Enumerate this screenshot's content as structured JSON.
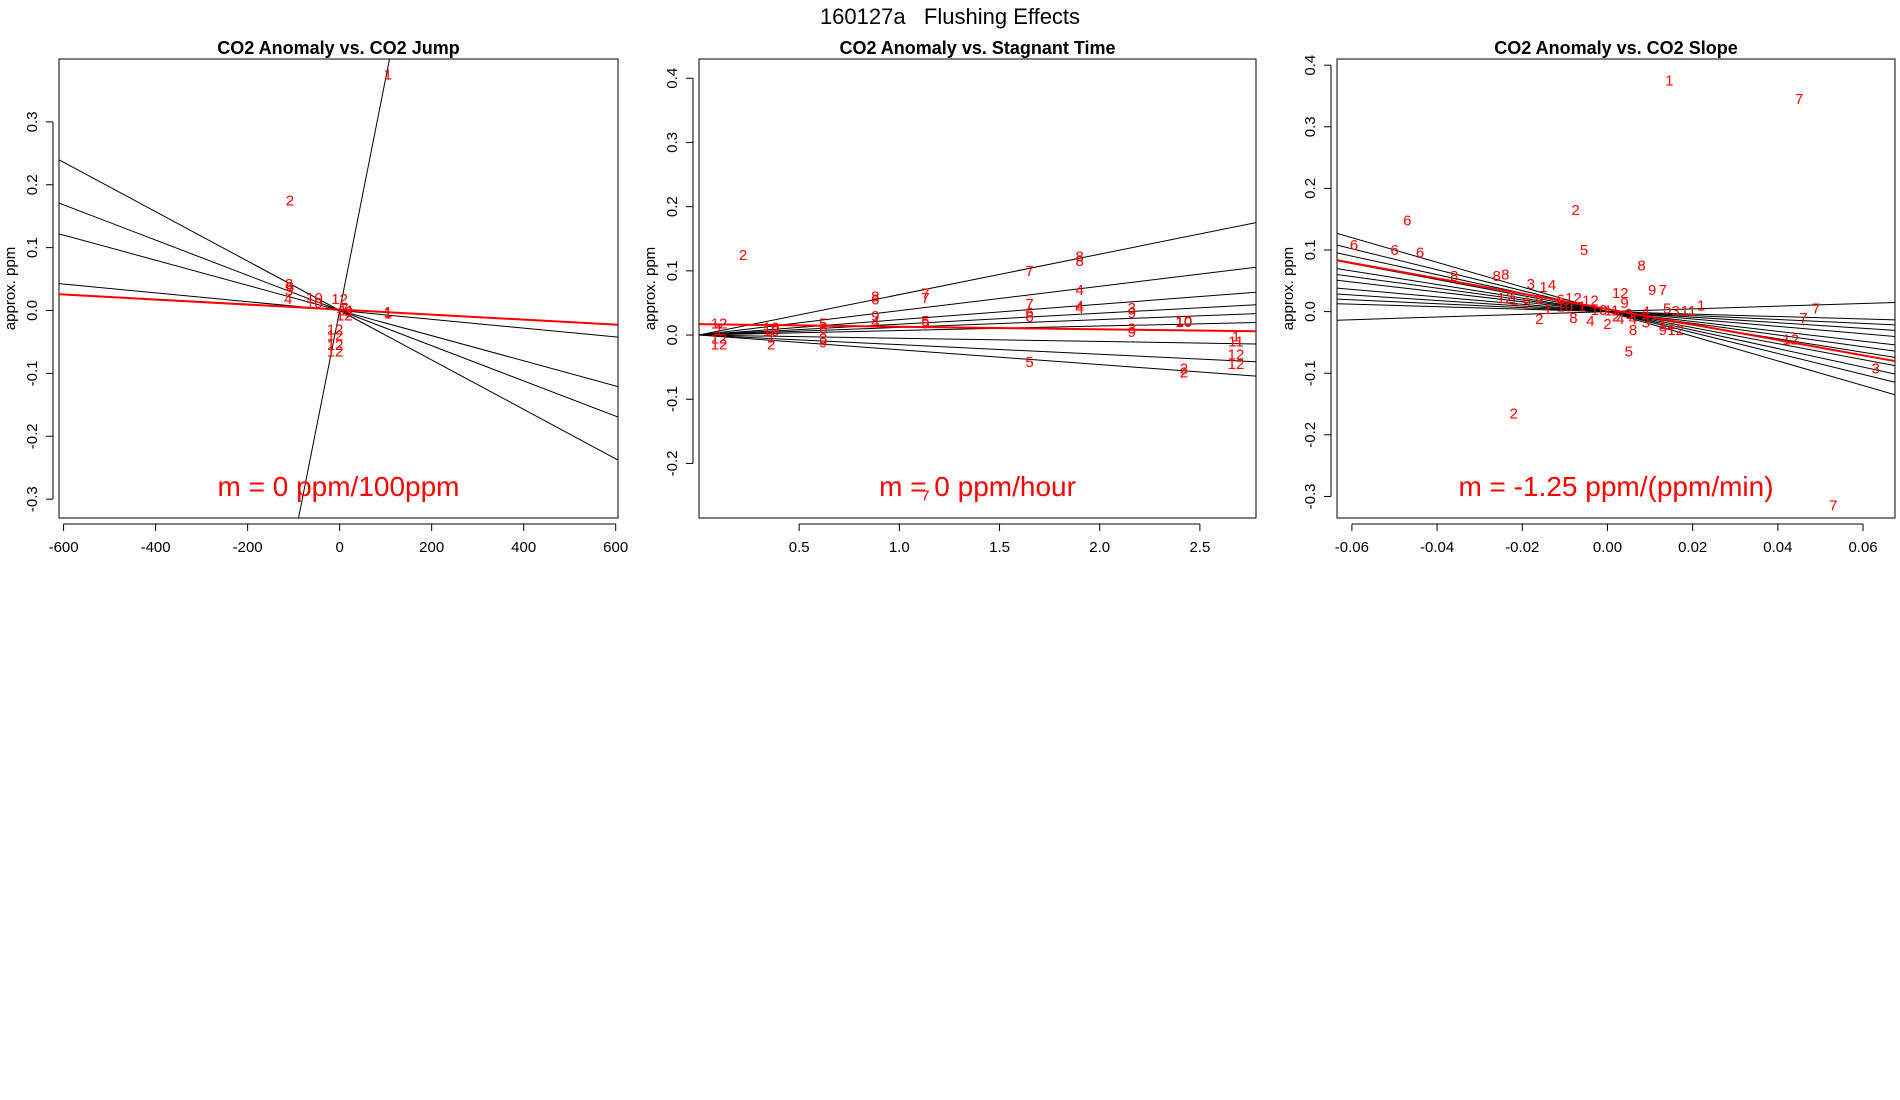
{
  "figure": {
    "suptitle": "160127a   Flushing Effects"
  },
  "chart_data": [
    {
      "type": "scatter",
      "title": "CO2 Anomaly vs. CO2 Jump",
      "ylabel": "approx. ppm",
      "xlabel": "",
      "xlim": [
        -610,
        605
      ],
      "ylim": [
        -0.33,
        0.4
      ],
      "xticks": [
        -600,
        -400,
        -200,
        0,
        200,
        400,
        600
      ],
      "xtick_labels": [
        "-600",
        "-400",
        "-200",
        "0",
        "200",
        "400",
        "600"
      ],
      "yticks": [
        -0.3,
        -0.2,
        -0.1,
        0.0,
        0.1,
        0.2,
        0.3
      ],
      "ytick_labels": [
        "-0.3",
        "-0.2",
        "-0.1",
        "0.0",
        "0.1",
        "0.2",
        "0.3"
      ],
      "annotation": "m = 0 ppm/100ppm",
      "fit_lines": [
        {
          "slope": 0.00369,
          "intercept": 0.0
        },
        {
          "slope": -0.000393,
          "intercept": 0.0
        },
        {
          "slope": -0.0002,
          "intercept": 0.0
        },
        {
          "slope": -0.00028,
          "intercept": 0.0
        },
        {
          "slope": -7e-05,
          "intercept": 0.0
        }
      ],
      "fit_line_red": {
        "slope": -4e-05,
        "intercept": 0.0015
      },
      "points": [
        {
          "x": 105,
          "y": 0.375,
          "label": "1"
        },
        {
          "x": -108,
          "y": 0.175,
          "label": "2"
        },
        {
          "x": -110,
          "y": 0.042,
          "label": "8"
        },
        {
          "x": -108,
          "y": 0.037,
          "label": "6"
        },
        {
          "x": -110,
          "y": 0.032,
          "label": "3"
        },
        {
          "x": -112,
          "y": 0.018,
          "label": "4"
        },
        {
          "x": -55,
          "y": 0.02,
          "label": "10"
        },
        {
          "x": -55,
          "y": 0.012,
          "label": "10"
        },
        {
          "x": 0,
          "y": 0.018,
          "label": "12"
        },
        {
          "x": 10,
          "y": 0.002,
          "label": "7"
        },
        {
          "x": 15,
          "y": 0.0,
          "label": "11"
        },
        {
          "x": 20,
          "y": -0.002,
          "label": "3"
        },
        {
          "x": 10,
          "y": -0.008,
          "label": "12"
        },
        {
          "x": 105,
          "y": -0.002,
          "label": "1"
        },
        {
          "x": 105,
          "y": -0.005,
          "label": "1"
        },
        {
          "x": -10,
          "y": -0.03,
          "label": "12"
        },
        {
          "x": -10,
          "y": -0.04,
          "label": "12"
        },
        {
          "x": -10,
          "y": -0.055,
          "label": "12"
        },
        {
          "x": -10,
          "y": -0.065,
          "label": "12"
        }
      ]
    },
    {
      "type": "scatter",
      "title": "CO2 Anomaly vs. Stagnant Time",
      "ylabel": "approx. ppm",
      "xlabel": "",
      "xlim": [
        0.0,
        2.78
      ],
      "ylim": [
        -0.285,
        0.43
      ],
      "xticks": [
        0.5,
        1.0,
        1.5,
        2.0,
        2.5
      ],
      "xtick_labels": [
        "0.5",
        "1.0",
        "1.5",
        "2.0",
        "2.5"
      ],
      "yticks": [
        -0.2,
        -0.1,
        0.0,
        0.1,
        0.2,
        0.3,
        0.4
      ],
      "ytick_labels": [
        "-0.2",
        "-0.1",
        "0.0",
        "0.1",
        "0.2",
        "0.3",
        "0.4"
      ],
      "annotation": "m = 0 ppm/hour",
      "fit_lines": [
        {
          "slope": 0.063,
          "intercept": 0.0
        },
        {
          "slope": 0.038,
          "intercept": 0.0
        },
        {
          "slope": 0.024,
          "intercept": 0.0
        },
        {
          "slope": 0.017,
          "intercept": 0.0
        },
        {
          "slope": 0.012,
          "intercept": 0.0
        },
        {
          "slope": 0.007,
          "intercept": 0.0
        },
        {
          "slope": -0.005,
          "intercept": 0.0
        },
        {
          "slope": -0.015,
          "intercept": 0.0
        },
        {
          "slope": -0.023,
          "intercept": 0.0
        }
      ],
      "fit_line_red": {
        "slope": -0.004,
        "intercept": 0.017
      },
      "points": [
        {
          "x": 0.22,
          "y": 0.125,
          "label": "2"
        },
        {
          "x": 0.1,
          "y": 0.018,
          "label": "12"
        },
        {
          "x": 0.1,
          "y": 0.008,
          "label": "1"
        },
        {
          "x": 0.1,
          "y": -0.005,
          "label": "12"
        },
        {
          "x": 0.1,
          "y": -0.015,
          "label": "12"
        },
        {
          "x": 0.36,
          "y": 0.012,
          "label": "10"
        },
        {
          "x": 0.36,
          "y": 0.006,
          "label": "10"
        },
        {
          "x": 0.36,
          "y": -0.004,
          "label": "1"
        },
        {
          "x": 0.36,
          "y": -0.015,
          "label": "2"
        },
        {
          "x": 0.62,
          "y": 0.018,
          "label": "5"
        },
        {
          "x": 0.62,
          "y": 0.01,
          "label": "6"
        },
        {
          "x": 0.62,
          "y": -0.005,
          "label": "3"
        },
        {
          "x": 0.62,
          "y": -0.012,
          "label": "9"
        },
        {
          "x": 0.88,
          "y": 0.06,
          "label": "8"
        },
        {
          "x": 0.88,
          "y": 0.055,
          "label": "6"
        },
        {
          "x": 0.88,
          "y": 0.03,
          "label": "9"
        },
        {
          "x": 0.88,
          "y": 0.02,
          "label": "4"
        },
        {
          "x": 1.13,
          "y": 0.065,
          "label": "7"
        },
        {
          "x": 1.13,
          "y": 0.058,
          "label": "7"
        },
        {
          "x": 1.13,
          "y": 0.022,
          "label": "5"
        },
        {
          "x": 1.13,
          "y": 0.018,
          "label": "5"
        },
        {
          "x": 1.13,
          "y": -0.25,
          "label": "7"
        },
        {
          "x": 1.65,
          "y": 0.1,
          "label": "7"
        },
        {
          "x": 1.65,
          "y": 0.048,
          "label": "7"
        },
        {
          "x": 1.65,
          "y": 0.035,
          "label": "6"
        },
        {
          "x": 1.65,
          "y": 0.028,
          "label": "6"
        },
        {
          "x": 1.65,
          "y": -0.042,
          "label": "5"
        },
        {
          "x": 1.9,
          "y": 0.122,
          "label": "8"
        },
        {
          "x": 1.9,
          "y": 0.115,
          "label": "8"
        },
        {
          "x": 1.9,
          "y": 0.07,
          "label": "4"
        },
        {
          "x": 1.9,
          "y": 0.045,
          "label": "4"
        },
        {
          "x": 1.9,
          "y": 0.042,
          "label": "4"
        },
        {
          "x": 2.16,
          "y": 0.042,
          "label": "3"
        },
        {
          "x": 2.16,
          "y": 0.034,
          "label": "9"
        },
        {
          "x": 2.16,
          "y": 0.01,
          "label": "3"
        },
        {
          "x": 2.16,
          "y": 0.005,
          "label": "9"
        },
        {
          "x": 2.42,
          "y": 0.022,
          "label": "10"
        },
        {
          "x": 2.42,
          "y": 0.02,
          "label": "10"
        },
        {
          "x": 2.42,
          "y": -0.052,
          "label": "2"
        },
        {
          "x": 2.42,
          "y": -0.058,
          "label": "2"
        },
        {
          "x": 2.68,
          "y": -0.002,
          "label": "1"
        },
        {
          "x": 2.68,
          "y": -0.01,
          "label": "11"
        },
        {
          "x": 2.68,
          "y": -0.03,
          "label": "12"
        },
        {
          "x": 2.68,
          "y": -0.045,
          "label": "12"
        }
      ]
    },
    {
      "type": "scatter",
      "title": "CO2 Anomaly vs. CO2 Slope",
      "ylabel": "approx. ppm",
      "xlabel": "",
      "xlim": [
        -0.0635,
        0.0675
      ],
      "ylim": [
        -0.335,
        0.41
      ],
      "xticks": [
        -0.06,
        -0.04,
        -0.02,
        0.0,
        0.02,
        0.04,
        0.06
      ],
      "xtick_labels": [
        "-0.06",
        "-0.04",
        "-0.02",
        "0.00",
        "0.02",
        "0.04",
        "0.06"
      ],
      "yticks": [
        -0.3,
        -0.2,
        -0.1,
        0.0,
        0.1,
        0.2,
        0.3,
        0.4
      ],
      "ytick_labels": [
        "-0.3",
        "-0.2",
        "-0.1",
        "0.0",
        "0.1",
        "0.2",
        "0.3",
        "0.4"
      ],
      "annotation": "m = -1.25 ppm/(ppm/min)",
      "fit_lines": [
        {
          "slope": -2.0,
          "intercept": 0.0
        },
        {
          "slope": -1.7,
          "intercept": 0.0
        },
        {
          "slope": -1.5,
          "intercept": 0.0
        },
        {
          "slope": -1.3,
          "intercept": 0.0
        },
        {
          "slope": -1.1,
          "intercept": 0.0
        },
        {
          "slope": -0.95,
          "intercept": 0.0
        },
        {
          "slope": -0.8,
          "intercept": 0.0
        },
        {
          "slope": -0.6,
          "intercept": 0.0
        },
        {
          "slope": -0.45,
          "intercept": 0.0
        },
        {
          "slope": -0.32,
          "intercept": 0.0
        },
        {
          "slope": -0.2,
          "intercept": 0.0
        },
        {
          "slope": 0.22,
          "intercept": 0.0
        }
      ],
      "fit_line_red": {
        "slope": -1.25,
        "intercept": 0.004
      },
      "points": [
        {
          "x": 0.0145,
          "y": 0.375,
          "label": "1"
        },
        {
          "x": 0.045,
          "y": 0.345,
          "label": "7"
        },
        {
          "x": -0.0075,
          "y": 0.165,
          "label": "2"
        },
        {
          "x": -0.047,
          "y": 0.148,
          "label": "6"
        },
        {
          "x": -0.0595,
          "y": 0.108,
          "label": "6"
        },
        {
          "x": -0.05,
          "y": 0.1,
          "label": "6"
        },
        {
          "x": -0.044,
          "y": 0.096,
          "label": "6"
        },
        {
          "x": -0.036,
          "y": 0.058,
          "label": "8"
        },
        {
          "x": -0.026,
          "y": 0.058,
          "label": "8"
        },
        {
          "x": -0.024,
          "y": 0.06,
          "label": "8"
        },
        {
          "x": -0.0055,
          "y": 0.1,
          "label": "5"
        },
        {
          "x": 0.008,
          "y": 0.075,
          "label": "8"
        },
        {
          "x": 0.0105,
          "y": 0.035,
          "label": "9"
        },
        {
          "x": 0.013,
          "y": 0.035,
          "label": "7"
        },
        {
          "x": 0.003,
          "y": 0.03,
          "label": "12"
        },
        {
          "x": -0.018,
          "y": 0.045,
          "label": "3"
        },
        {
          "x": -0.015,
          "y": 0.04,
          "label": "1"
        },
        {
          "x": -0.013,
          "y": 0.043,
          "label": "4"
        },
        {
          "x": -0.024,
          "y": 0.022,
          "label": "12"
        },
        {
          "x": -0.022,
          "y": 0.018,
          "label": "1"
        },
        {
          "x": -0.019,
          "y": 0.015,
          "label": "9"
        },
        {
          "x": -0.016,
          "y": 0.02,
          "label": "9"
        },
        {
          "x": -0.011,
          "y": 0.02,
          "label": "6"
        },
        {
          "x": -0.008,
          "y": 0.022,
          "label": "12"
        },
        {
          "x": -0.004,
          "y": 0.018,
          "label": "12"
        },
        {
          "x": -0.01,
          "y": 0.008,
          "label": "10"
        },
        {
          "x": -0.014,
          "y": 0.004,
          "label": "1"
        },
        {
          "x": -0.006,
          "y": 0.008,
          "label": "1"
        },
        {
          "x": -0.002,
          "y": 0.003,
          "label": "10"
        },
        {
          "x": 0.001,
          "y": 0.002,
          "label": "11"
        },
        {
          "x": 0.004,
          "y": 0.014,
          "label": "9"
        },
        {
          "x": 0.005,
          "y": -0.004,
          "label": "3"
        },
        {
          "x": 0.009,
          "y": 0.0,
          "label": "4"
        },
        {
          "x": 0.014,
          "y": 0.005,
          "label": "5"
        },
        {
          "x": 0.016,
          "y": 0.001,
          "label": "3"
        },
        {
          "x": 0.019,
          "y": 0.001,
          "label": "11"
        },
        {
          "x": 0.022,
          "y": 0.01,
          "label": "1"
        },
        {
          "x": -0.016,
          "y": -0.012,
          "label": "2"
        },
        {
          "x": -0.008,
          "y": -0.01,
          "label": "8"
        },
        {
          "x": -0.004,
          "y": -0.015,
          "label": "4"
        },
        {
          "x": 0.0,
          "y": -0.02,
          "label": "2"
        },
        {
          "x": 0.002,
          "y": -0.008,
          "label": "2"
        },
        {
          "x": 0.003,
          "y": -0.012,
          "label": "4"
        },
        {
          "x": 0.006,
          "y": -0.012,
          "label": "4"
        },
        {
          "x": 0.009,
          "y": -0.018,
          "label": "3"
        },
        {
          "x": 0.006,
          "y": -0.03,
          "label": "8"
        },
        {
          "x": 0.014,
          "y": -0.02,
          "label": "12"
        },
        {
          "x": 0.013,
          "y": -0.03,
          "label": "9"
        },
        {
          "x": 0.016,
          "y": -0.03,
          "label": "12"
        },
        {
          "x": 0.046,
          "y": -0.01,
          "label": "7"
        },
        {
          "x": 0.049,
          "y": 0.005,
          "label": "7"
        },
        {
          "x": 0.043,
          "y": -0.045,
          "label": "12"
        },
        {
          "x": 0.063,
          "y": -0.092,
          "label": "3"
        },
        {
          "x": 0.005,
          "y": -0.065,
          "label": "5"
        },
        {
          "x": -0.022,
          "y": -0.165,
          "label": "2"
        },
        {
          "x": 0.053,
          "y": -0.315,
          "label": "7"
        }
      ]
    }
  ]
}
